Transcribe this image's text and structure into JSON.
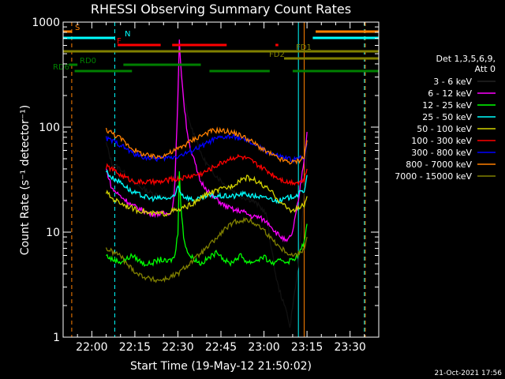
{
  "chart_data": {
    "type": "line",
    "title": "RHESSI Observing Summary Count Rates",
    "xlabel": "Start Time (19-May-12 21:50:02)",
    "ylabel": "Count Rate (s⁻¹ detector⁻¹)",
    "yscale": "log",
    "ylim": [
      1,
      1000
    ],
    "xlim_minutes": [
      -10,
      100
    ],
    "x_tick_labels": [
      "22:00",
      "22:15",
      "22:30",
      "22:45",
      "23:00",
      "23:15",
      "23:30"
    ],
    "x_tick_minutes": [
      0,
      15,
      30,
      45,
      60,
      75,
      90
    ],
    "y_tick_labels": [
      "1",
      "10",
      "100",
      "1000"
    ],
    "y_tick_values": [
      1,
      10,
      100,
      1000
    ],
    "legend": {
      "placement": "right",
      "header": [
        "Det 1,3,5,6,9,",
        "Att 0"
      ],
      "entries": [
        {
          "label": "3 - 6 keV",
          "color": "#000000"
        },
        {
          "label": "6 - 12 keV",
          "color": "#ff00ff"
        },
        {
          "label": "12 - 25 keV",
          "color": "#00ff00"
        },
        {
          "label": "25 - 50 keV",
          "color": "#00ffff"
        },
        {
          "label": "50 - 100 keV",
          "color": "#d4d400"
        },
        {
          "label": "100 - 300 keV",
          "color": "#ff0000"
        },
        {
          "label": "300 - 800 keV",
          "color": "#0000ff"
        },
        {
          "label": "800 - 7000 keV",
          "color": "#ff8000"
        },
        {
          "label": "7000 - 15000 keV",
          "color": "#808000"
        }
      ]
    },
    "series": [
      {
        "name": "3 - 6 keV",
        "color": "#000000",
        "x": [
          5,
          7,
          10,
          12,
          14,
          16,
          18,
          20,
          22,
          24,
          26,
          28,
          29,
          30,
          30.5,
          31,
          32,
          33,
          34,
          35,
          36,
          37,
          38,
          40,
          42,
          44,
          46,
          48,
          50,
          52,
          54,
          56,
          58,
          60,
          61,
          62,
          63,
          64,
          65,
          66,
          67,
          68,
          69,
          70,
          71,
          72,
          73,
          74,
          75
        ],
        "y": [
          70,
          45,
          40,
          35,
          30,
          28,
          26,
          24,
          23,
          22,
          21,
          22,
          40,
          150,
          350,
          300,
          200,
          140,
          110,
          95,
          80,
          70,
          55,
          45,
          38,
          33,
          29,
          26,
          24,
          22,
          21,
          20,
          18,
          16,
          14,
          9,
          6,
          4,
          3,
          2.5,
          2,
          1.8,
          1.2,
          2,
          3,
          5,
          10,
          25,
          60
        ]
      },
      {
        "name": "6 - 12 keV",
        "color": "#ff00ff",
        "x": [
          5,
          7,
          10,
          12,
          14,
          16,
          18,
          20,
          22,
          24,
          26,
          28,
          29,
          30,
          30.5,
          31,
          32,
          33,
          34,
          35,
          36,
          37,
          38,
          40,
          42,
          44,
          46,
          48,
          50,
          52,
          54,
          56,
          58,
          60,
          62,
          64,
          66,
          68,
          70,
          72,
          74,
          75
        ],
        "y": [
          40,
          26,
          22,
          20,
          18,
          17,
          16,
          15,
          15,
          15,
          15,
          16,
          30,
          200,
          650,
          400,
          180,
          100,
          70,
          55,
          45,
          35,
          30,
          26,
          22,
          20,
          18,
          17,
          16,
          16,
          15,
          14,
          14,
          13,
          12,
          10,
          9,
          8,
          10,
          20,
          50,
          90
        ]
      },
      {
        "name": "12 - 25 keV",
        "color": "#00ff00",
        "x": [
          5,
          7,
          10,
          12,
          14,
          16,
          18,
          20,
          22,
          24,
          26,
          28,
          29,
          30,
          30.5,
          31,
          32,
          33,
          34,
          36,
          38,
          40,
          42,
          44,
          46,
          48,
          50,
          52,
          54,
          56,
          58,
          60,
          62,
          64,
          66,
          68,
          70,
          72,
          74,
          75
        ],
        "y": [
          6,
          5.5,
          5.2,
          5.5,
          6,
          5.5,
          5,
          5,
          5.2,
          5.5,
          5.2,
          5.5,
          6,
          10,
          40,
          18,
          9,
          7,
          6,
          5.5,
          5,
          5.5,
          6,
          6.5,
          5.5,
          5,
          5.5,
          6,
          5.2,
          5.2,
          5.5,
          5.8,
          5.2,
          5,
          5.5,
          5.2,
          5.5,
          6,
          8,
          12
        ]
      },
      {
        "name": "25 - 50 keV",
        "color": "#00ffff",
        "x": [
          5,
          7,
          10,
          12,
          14,
          16,
          18,
          20,
          22,
          24,
          26,
          28,
          29,
          30,
          31,
          32,
          34,
          36,
          38,
          40,
          42,
          44,
          46,
          48,
          50,
          52,
          54,
          56,
          58,
          60,
          62,
          64,
          66,
          68,
          70,
          72,
          74,
          75
        ],
        "y": [
          38,
          33,
          30,
          27,
          24,
          23,
          22,
          21,
          21,
          21,
          21,
          21,
          22,
          28,
          24,
          22,
          21,
          20,
          21,
          22,
          22,
          22,
          22,
          22,
          22,
          23,
          23,
          22,
          22,
          21,
          21,
          20,
          20,
          21,
          22,
          23,
          25,
          35
        ]
      },
      {
        "name": "50 - 100 keV",
        "color": "#d4d400",
        "x": [
          5,
          7,
          10,
          12,
          14,
          16,
          18,
          20,
          22,
          24,
          26,
          28,
          30,
          32,
          34,
          36,
          38,
          40,
          42,
          44,
          46,
          48,
          50,
          52,
          54,
          56,
          58,
          60,
          62,
          64,
          66,
          68,
          70,
          72,
          74,
          75
        ],
        "y": [
          24,
          21,
          19,
          18,
          17,
          16,
          16,
          15,
          15,
          15,
          15,
          16,
          16,
          17,
          18,
          19,
          21,
          23,
          24,
          25,
          26,
          27,
          29,
          32,
          33,
          32,
          30,
          27,
          25,
          22,
          19,
          17,
          16,
          17,
          18,
          22
        ]
      },
      {
        "name": "100 - 300 keV",
        "color": "#ff0000",
        "x": [
          5,
          7,
          10,
          12,
          14,
          16,
          18,
          20,
          22,
          24,
          26,
          28,
          30,
          32,
          34,
          36,
          38,
          40,
          42,
          44,
          46,
          48,
          50,
          52,
          54,
          56,
          58,
          60,
          62,
          64,
          66,
          68,
          70,
          72,
          74,
          75
        ],
        "y": [
          42,
          40,
          35,
          33,
          31,
          30,
          30,
          30,
          30,
          30,
          31,
          32,
          32,
          33,
          34,
          35,
          36,
          38,
          41,
          44,
          47,
          50,
          52,
          52,
          50,
          47,
          43,
          40,
          37,
          34,
          32,
          30,
          30,
          30,
          31,
          40
        ]
      },
      {
        "name": "300 - 800 keV",
        "color": "#0000ff",
        "x": [
          5,
          7,
          10,
          12,
          14,
          16,
          18,
          20,
          22,
          24,
          26,
          28,
          30,
          32,
          34,
          36,
          38,
          40,
          42,
          44,
          46,
          48,
          50,
          52,
          54,
          56,
          58,
          60,
          62,
          64,
          66,
          68,
          70,
          72,
          74,
          75
        ],
        "y": [
          78,
          74,
          68,
          62,
          57,
          54,
          52,
          51,
          50,
          50,
          51,
          52,
          53,
          55,
          58,
          62,
          65,
          70,
          75,
          78,
          80,
          81,
          80,
          78,
          74,
          70,
          65,
          60,
          57,
          54,
          52,
          50,
          49,
          50,
          52,
          70
        ]
      },
      {
        "name": "800 - 7000 keV",
        "color": "#ff8000",
        "x": [
          5,
          7,
          10,
          12,
          14,
          16,
          18,
          20,
          22,
          24,
          26,
          28,
          30,
          32,
          34,
          36,
          38,
          40,
          42,
          44,
          46,
          48,
          50,
          52,
          54,
          56,
          58,
          60,
          62,
          64,
          66,
          68,
          70,
          72,
          74,
          75
        ],
        "y": [
          95,
          88,
          78,
          70,
          63,
          58,
          55,
          53,
          52,
          53,
          55,
          58,
          62,
          67,
          72,
          78,
          83,
          88,
          92,
          93,
          92,
          90,
          87,
          83,
          78,
          72,
          66,
          60,
          56,
          52,
          49,
          47,
          46,
          48,
          52,
          75
        ]
      },
      {
        "name": "7000 - 15000 keV",
        "color": "#808000",
        "x": [
          5,
          7,
          10,
          12,
          14,
          16,
          18,
          20,
          22,
          24,
          26,
          28,
          30,
          32,
          34,
          36,
          38,
          40,
          42,
          44,
          46,
          48,
          50,
          52,
          54,
          56,
          58,
          60,
          62,
          64,
          66,
          68,
          70,
          72,
          74,
          75
        ],
        "y": [
          7,
          6.5,
          6,
          5,
          4.5,
          4,
          3.8,
          3.6,
          3.5,
          3.5,
          3.6,
          3.8,
          4,
          4.5,
          5,
          5.6,
          6.3,
          7,
          8,
          9,
          10.5,
          11.5,
          12.5,
          13,
          13,
          12.5,
          11.5,
          10.5,
          9,
          8,
          7,
          6.5,
          6,
          6.2,
          7,
          9
        ]
      }
    ],
    "annotations": [
      {
        "label": "S",
        "color": "#ff8000"
      },
      {
        "label": "N",
        "color": "#00ffff"
      },
      {
        "label": "F",
        "color": "#ff0000"
      },
      {
        "label": "FD1",
        "color": "#808000"
      },
      {
        "label": "FD2",
        "color": "#808000"
      },
      {
        "label": "RD0",
        "color": "#008000"
      },
      {
        "label": "RD6",
        "color": "#008000"
      }
    ],
    "flag_bars": [
      {
        "label": "S",
        "color": "#ff8000",
        "segments": [
          [
            -10,
            -7
          ],
          [
            78,
            100
          ]
        ]
      },
      {
        "label": "N",
        "color": "#00ffff",
        "segments": [
          [
            -10,
            8
          ],
          [
            77,
            100
          ]
        ]
      },
      {
        "label": "F",
        "color": "#ff0000",
        "segments": [
          [
            9,
            24
          ],
          [
            28,
            47
          ],
          [
            64,
            65
          ]
        ]
      },
      {
        "label": "FD1",
        "color": "#808000",
        "segments": [
          [
            -10,
            100
          ]
        ]
      },
      {
        "label": "FD2",
        "color": "#808000",
        "segments": [
          [
            67,
            100
          ]
        ]
      },
      {
        "label": "RD0",
        "color": "#008000",
        "segments": [
          [
            -8,
            -5
          ],
          [
            11,
            38
          ]
        ]
      },
      {
        "label": "RD6",
        "color": "#008000",
        "segments": [
          [
            -6,
            14
          ],
          [
            41,
            62
          ],
          [
            70,
            100
          ]
        ]
      }
    ],
    "vertical_lines": [
      {
        "minute": -7,
        "color": "#ff8000",
        "style": "dashed"
      },
      {
        "minute": 8,
        "color": "#00ffff",
        "style": "dashed"
      },
      {
        "minute": 72,
        "color": "#00ffff",
        "style": "solid"
      },
      {
        "minute": 74,
        "color": "#ff8000",
        "style": "solid"
      },
      {
        "minute": 95,
        "color": "#00ffff",
        "style": "dashed"
      },
      {
        "minute": 95.3,
        "color": "#ff8000",
        "style": "dashed"
      }
    ],
    "footer_timestamp": "21-Oct-2021 17:56"
  }
}
